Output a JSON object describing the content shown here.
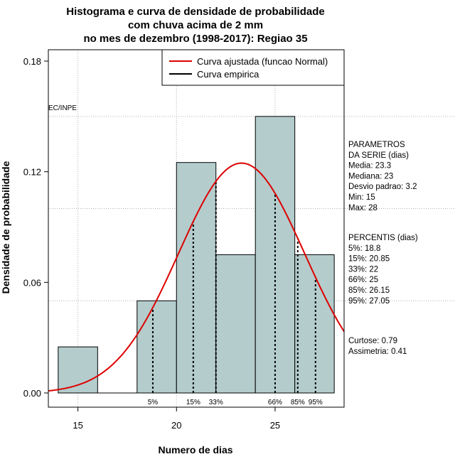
{
  "chart_data": {
    "type": "bar",
    "title": [
      "Histograma e curva de densidade de probabilidade",
      "com chuva acima de 2 mm",
      "no mes de dezembro (1998-2017): Regiao 35"
    ],
    "xlabel": "Numero de dias",
    "ylabel": "Densidade de probabilidade",
    "xlim": [
      13.5,
      28.5
    ],
    "ylim": [
      0,
      0.18
    ],
    "x_ticks": [
      15,
      20,
      25
    ],
    "y_ticks": [
      0.0,
      0.06,
      0.12,
      0.18
    ],
    "y_tick_labels": [
      "0.00",
      "0.06",
      "0.12",
      "0.18"
    ],
    "grid_y": [
      0.05,
      0.1,
      0.15
    ],
    "bins": [
      {
        "from": 14,
        "to": 16,
        "density": 0.025
      },
      {
        "from": 16,
        "to": 18,
        "density": 0.0
      },
      {
        "from": 18,
        "to": 20,
        "density": 0.05
      },
      {
        "from": 20,
        "to": 22,
        "density": 0.125
      },
      {
        "from": 22,
        "to": 24,
        "density": 0.075
      },
      {
        "from": 24,
        "to": 26,
        "density": 0.15
      },
      {
        "from": 26,
        "to": 28,
        "density": 0.075
      }
    ],
    "bar_color": "#b4cccc",
    "curve_color": "#dd0000",
    "normal_curve": {
      "mean": 23.3,
      "sd": 3.2
    },
    "percentiles": [
      {
        "label": "5%",
        "x": 18.8
      },
      {
        "label": "15%",
        "x": 20.85
      },
      {
        "label": "33%",
        "x": 22
      },
      {
        "label": "66%",
        "x": 25
      },
      {
        "label": "85%",
        "x": 26.15
      },
      {
        "label": "95%",
        "x": 27.05
      }
    ],
    "legend": [
      {
        "label": "Curva ajustada (funcao Normal)",
        "color": "#dd0000"
      },
      {
        "label": "Curva empirica",
        "color": "#000000"
      }
    ],
    "watermark": "EC/INPE"
  },
  "stats_panel": {
    "params_lines": [
      "PARAMETROS",
      "DA SERIE (dias)",
      "  Media: 23.3",
      "  Mediana: 23",
      "  Desvio padrao: 3.2",
      "  Min: 15",
      "  Max: 28"
    ],
    "percentil_lines": [
      "PERCENTIS (dias)",
      "   5%: 18.8",
      "   15%: 20.85",
      "   33%: 22",
      "   66%: 25",
      "   85%: 26.15",
      "   95%: 27.05"
    ],
    "shape_lines": [
      "  Curtose: 0.79",
      "Assimetria: 0.41"
    ]
  }
}
